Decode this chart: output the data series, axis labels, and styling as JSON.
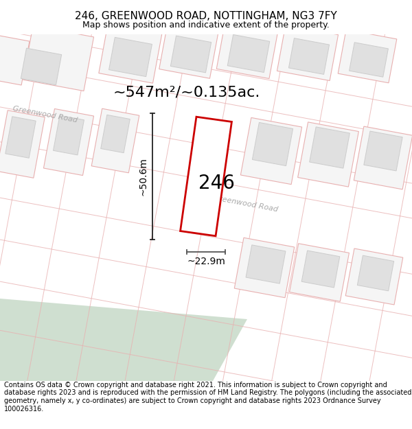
{
  "title_line1": "246, GREENWOOD ROAD, NOTTINGHAM, NG3 7FY",
  "title_line2": "Map shows position and indicative extent of the property.",
  "footer_text": "Contains OS data © Crown copyright and database right 2021. This information is subject to Crown copyright and database rights 2023 and is reproduced with the permission of HM Land Registry. The polygons (including the associated geometry, namely x, y co-ordinates) are subject to Crown copyright and database rights 2023 Ordnance Survey 100026316.",
  "area_label": "~547m²/~0.135ac.",
  "property_number": "246",
  "dim_width": "~22.9m",
  "dim_height": "~50.6m",
  "bg_color": "#ffffff",
  "map_bg": "#ffffff",
  "plot_stroke": "#e8b0b0",
  "plot_fill": "#f5f5f5",
  "building_fill": "#e0e0e0",
  "building_stroke": "#cccccc",
  "property_stroke": "#cc0000",
  "property_fill": "#ffffff",
  "green_area_fill": "#cfdfd0",
  "road_line_color": "#e0a0a0",
  "road_label_color": "#aaaaaa",
  "dim_line_color": "#222222",
  "title_fontsize": 11,
  "subtitle_fontsize": 9,
  "footer_fontsize": 7.0,
  "area_label_fontsize": 16,
  "number_fontsize": 20,
  "dim_fontsize": 10,
  "road_label_fontsize": 8
}
